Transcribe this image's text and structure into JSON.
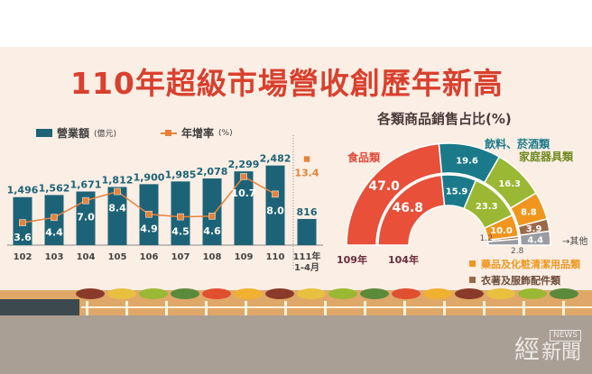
{
  "title": "110年超級市場營收創歷年新高",
  "chart_data": [
    {
      "type": "bar",
      "legend": [
        {
          "name": "營業額",
          "unit": "(億元)"
        },
        {
          "name": "年增率",
          "unit": "(%)"
        }
      ],
      "categories": [
        "102",
        "103",
        "104",
        "105",
        "106",
        "107",
        "108",
        "109",
        "110",
        "111年\n1-4月"
      ],
      "category_labels": [
        "102",
        "103",
        "104",
        "105",
        "106",
        "107",
        "108",
        "109",
        "110",
        "111年",
        "1-4月"
      ],
      "series": [
        {
          "name": "營業額",
          "type": "bar",
          "values": [
            1496,
            1562,
            1671,
            1812,
            1900,
            1985,
            2078,
            2299,
            2482,
            816
          ],
          "labels": [
            "1,496",
            "1,562",
            "1,671",
            "1,812",
            "1,900",
            "1,985",
            "2,078",
            "2,299",
            "2,482",
            "816"
          ]
        },
        {
          "name": "年增率",
          "type": "line",
          "values": [
            3.6,
            4.4,
            7.0,
            8.4,
            4.9,
            4.5,
            4.6,
            10.7,
            8.0,
            13.4
          ],
          "labels": [
            "3.6",
            "4.4",
            "7.0",
            "8.4",
            "4.9",
            "4.5",
            "4.6",
            "10.7",
            "8.0",
            "13.4"
          ]
        }
      ],
      "colors": {
        "bar": "#1d6377",
        "line": "#e8823a"
      }
    },
    {
      "type": "pie",
      "title": "各類商品銷售占比(%)",
      "rings": [
        {
          "name": "109年",
          "values": [
            47.0,
            19.6,
            16.3,
            8.8,
            3.9,
            4.4
          ]
        },
        {
          "name": "104年",
          "values": [
            46.8,
            15.9,
            23.3,
            10.0,
            1.2,
            2.8
          ]
        }
      ],
      "categories": [
        "食品類",
        "飲料、菸酒類",
        "家庭器具類",
        "藥品及化粧清潔用品類",
        "衣著及服飾配件類",
        "其他"
      ],
      "colors": [
        "#e8503a",
        "#1a7a8a",
        "#9ab833",
        "#f0961e",
        "#9a6a48",
        "#9b9ca3"
      ]
    }
  ],
  "logo": {
    "main": "經",
    "news": "NEWS",
    "sub": "新聞"
  }
}
